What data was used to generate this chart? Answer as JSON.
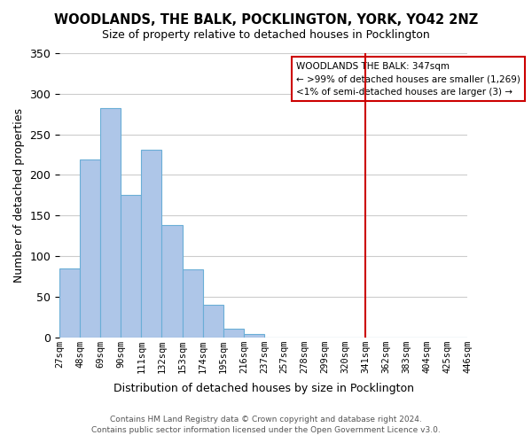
{
  "title": "WOODLANDS, THE BALK, POCKLINGTON, YORK, YO42 2NZ",
  "subtitle": "Size of property relative to detached houses in Pocklington",
  "xlabel": "Distribution of detached houses by size in Pocklington",
  "ylabel": "Number of detached properties",
  "bar_color": "#aec6e8",
  "bar_edge_color": "#6aaed6",
  "grid_color": "#cccccc",
  "background_color": "#ffffff",
  "bin_labels": [
    "27sqm",
    "48sqm",
    "69sqm",
    "90sqm",
    "111sqm",
    "132sqm",
    "153sqm",
    "174sqm",
    "195sqm",
    "216sqm",
    "237sqm",
    "257sqm",
    "278sqm",
    "299sqm",
    "320sqm",
    "341sqm",
    "362sqm",
    "383sqm",
    "404sqm",
    "425sqm",
    "446sqm"
  ],
  "bar_values": [
    85,
    219,
    282,
    175,
    231,
    138,
    84,
    40,
    11,
    4,
    0,
    0,
    0,
    0,
    0,
    0,
    0,
    0,
    0,
    0
  ],
  "bin_edges": [
    27,
    48,
    69,
    90,
    111,
    132,
    153,
    174,
    195,
    216,
    237,
    257,
    278,
    299,
    320,
    341,
    362,
    383,
    404,
    425,
    446
  ],
  "vline_x": 341,
  "vline_color": "#cc0000",
  "ylim": [
    0,
    350
  ],
  "yticks": [
    0,
    50,
    100,
    150,
    200,
    250,
    300,
    350
  ],
  "legend_title": "WOODLANDS THE BALK: 347sqm",
  "legend_line1": "← >99% of detached houses are smaller (1,269)",
  "legend_line2": "<1% of semi-detached houses are larger (3) →",
  "legend_box_color": "#ffffff",
  "legend_border_color": "#cc0000",
  "footer_line1": "Contains HM Land Registry data © Crown copyright and database right 2024.",
  "footer_line2": "Contains public sector information licensed under the Open Government Licence v3.0."
}
